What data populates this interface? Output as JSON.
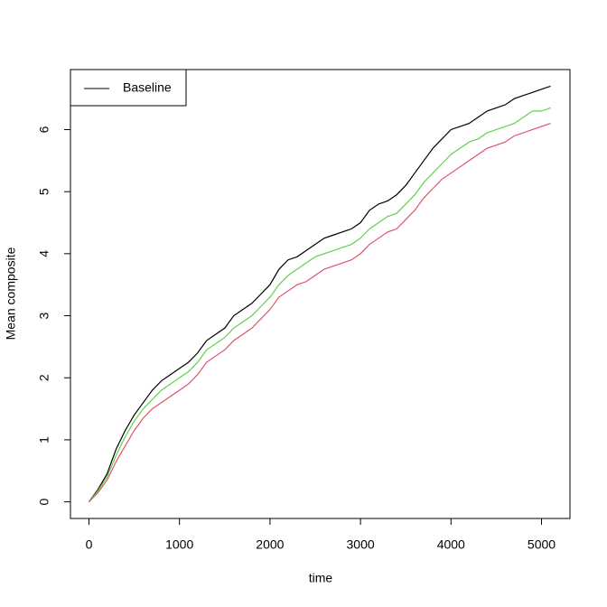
{
  "chart_data": {
    "type": "line",
    "xlabel": "time",
    "ylabel": "Mean composite",
    "x": [
      0,
      100,
      200,
      300,
      400,
      500,
      600,
      700,
      800,
      900,
      1000,
      1100,
      1200,
      1300,
      1400,
      1500,
      1600,
      1700,
      1800,
      1900,
      2000,
      2100,
      2200,
      2300,
      2400,
      2500,
      2600,
      2700,
      2800,
      2900,
      3000,
      3100,
      3200,
      3300,
      3400,
      3500,
      3600,
      3700,
      3800,
      3900,
      4000,
      4100,
      4200,
      4300,
      4400,
      4500,
      4600,
      4700,
      4800,
      4900,
      5000,
      5100
    ],
    "series": [
      {
        "name": "Baseline",
        "color": "#000000",
        "values": [
          0,
          0.2,
          0.45,
          0.85,
          1.15,
          1.4,
          1.6,
          1.8,
          1.95,
          2.05,
          2.15,
          2.25,
          2.4,
          2.6,
          2.7,
          2.8,
          3.0,
          3.1,
          3.2,
          3.35,
          3.5,
          3.75,
          3.9,
          3.95,
          4.05,
          4.15,
          4.25,
          4.3,
          4.35,
          4.4,
          4.5,
          4.7,
          4.8,
          4.85,
          4.95,
          5.1,
          5.3,
          5.5,
          5.7,
          5.85,
          6.0,
          6.05,
          6.1,
          6.2,
          6.3,
          6.35,
          6.4,
          6.5,
          6.55,
          6.6,
          6.65,
          6.7
        ]
      },
      {
        "color": "#61D04F",
        "values": [
          0,
          0.18,
          0.4,
          0.75,
          1.05,
          1.3,
          1.5,
          1.65,
          1.8,
          1.9,
          2.0,
          2.1,
          2.25,
          2.45,
          2.55,
          2.65,
          2.8,
          2.9,
          3.0,
          3.15,
          3.3,
          3.5,
          3.65,
          3.75,
          3.85,
          3.95,
          4.0,
          4.05,
          4.1,
          4.15,
          4.25,
          4.4,
          4.5,
          4.6,
          4.65,
          4.8,
          4.95,
          5.15,
          5.3,
          5.45,
          5.6,
          5.7,
          5.8,
          5.85,
          5.95,
          6.0,
          6.05,
          6.1,
          6.2,
          6.3,
          6.3,
          6.35
        ]
      },
      {
        "color": "#DF536B",
        "values": [
          0,
          0.15,
          0.35,
          0.65,
          0.9,
          1.15,
          1.35,
          1.5,
          1.6,
          1.7,
          1.8,
          1.9,
          2.05,
          2.25,
          2.35,
          2.45,
          2.6,
          2.7,
          2.8,
          2.95,
          3.1,
          3.3,
          3.4,
          3.5,
          3.55,
          3.65,
          3.75,
          3.8,
          3.85,
          3.9,
          4.0,
          4.15,
          4.25,
          4.35,
          4.4,
          4.55,
          4.7,
          4.9,
          5.05,
          5.2,
          5.3,
          5.4,
          5.5,
          5.6,
          5.7,
          5.75,
          5.8,
          5.9,
          5.95,
          6.0,
          6.05,
          6.1
        ]
      }
    ],
    "xlim": [
      -204.4,
      5314.4
    ],
    "ylim": [
      -0.268,
      6.968
    ],
    "xticks": [
      0,
      1000,
      2000,
      3000,
      4000,
      5000
    ],
    "yticks": [
      0,
      1,
      2,
      3,
      4,
      5,
      6
    ],
    "legend": "topleft"
  }
}
